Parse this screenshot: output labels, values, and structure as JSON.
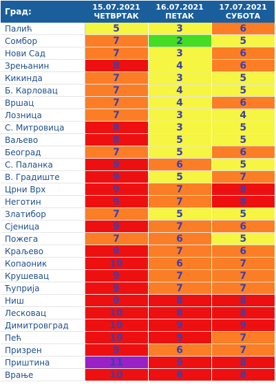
{
  "header": {
    "city_label": "Град:",
    "days": [
      {
        "date": "15.07.2021",
        "weekday": "ЧЕТВРТАК"
      },
      {
        "date": "16.07.2021",
        "weekday": "ПЕТАК"
      },
      {
        "date": "17.07.2021",
        "weekday": "СУБОТА"
      }
    ]
  },
  "colors": {
    "header_bg": "#1a5e9c",
    "level_2": "#44dd22",
    "level_3_5": "#f5f542",
    "level_6_7": "#fb7e26",
    "level_8_10": "#ee1010",
    "level_11": "#9a20c8"
  },
  "rows": [
    {
      "city": "Палић",
      "values": [
        5,
        3,
        6
      ]
    },
    {
      "city": "Сомбор",
      "values": [
        7,
        2,
        5
      ]
    },
    {
      "city": "Нови Сад",
      "values": [
        7,
        3,
        6
      ]
    },
    {
      "city": "Зрењанин",
      "values": [
        8,
        4,
        6
      ]
    },
    {
      "city": "Кикинда",
      "values": [
        7,
        3,
        5
      ]
    },
    {
      "city": "Б. Карловац",
      "values": [
        7,
        4,
        5
      ]
    },
    {
      "city": "Вршац",
      "values": [
        7,
        4,
        6
      ]
    },
    {
      "city": "Лозница",
      "values": [
        7,
        3,
        4
      ]
    },
    {
      "city": "С. Митровица",
      "values": [
        8,
        3,
        5
      ]
    },
    {
      "city": "Ваљево",
      "values": [
        8,
        5,
        5
      ]
    },
    {
      "city": "Београд",
      "values": [
        7,
        5,
        6
      ]
    },
    {
      "city": "С. Паланка",
      "values": [
        9,
        6,
        5
      ]
    },
    {
      "city": "В. Градиште",
      "values": [
        9,
        5,
        7
      ]
    },
    {
      "city": "Црни Врх",
      "values": [
        9,
        7,
        8
      ]
    },
    {
      "city": "Неготин",
      "values": [
        9,
        7,
        8
      ]
    },
    {
      "city": "Златибор",
      "values": [
        7,
        5,
        5
      ]
    },
    {
      "city": "Сјеница",
      "values": [
        9,
        7,
        6
      ]
    },
    {
      "city": "Пожега",
      "values": [
        7,
        6,
        5
      ]
    },
    {
      "city": "Краљево",
      "values": [
        8,
        7,
        6
      ]
    },
    {
      "city": "Копаоник",
      "values": [
        10,
        6,
        7
      ]
    },
    {
      "city": "Крушевац",
      "values": [
        9,
        7,
        7
      ]
    },
    {
      "city": "Ћуприја",
      "values": [
        9,
        7,
        7
      ]
    },
    {
      "city": "Ниш",
      "values": [
        9,
        8,
        8
      ]
    },
    {
      "city": "Лесковац",
      "values": [
        10,
        8,
        8
      ]
    },
    {
      "city": "Димитровград",
      "values": [
        10,
        9,
        9
      ]
    },
    {
      "city": "Пећ",
      "values": [
        10,
        9,
        7
      ]
    },
    {
      "city": "Призрен",
      "values": [
        9,
        6,
        7
      ]
    },
    {
      "city": "Приштина",
      "values": [
        11,
        9,
        8
      ]
    },
    {
      "city": "Врање",
      "values": [
        10,
        8,
        8
      ]
    }
  ]
}
